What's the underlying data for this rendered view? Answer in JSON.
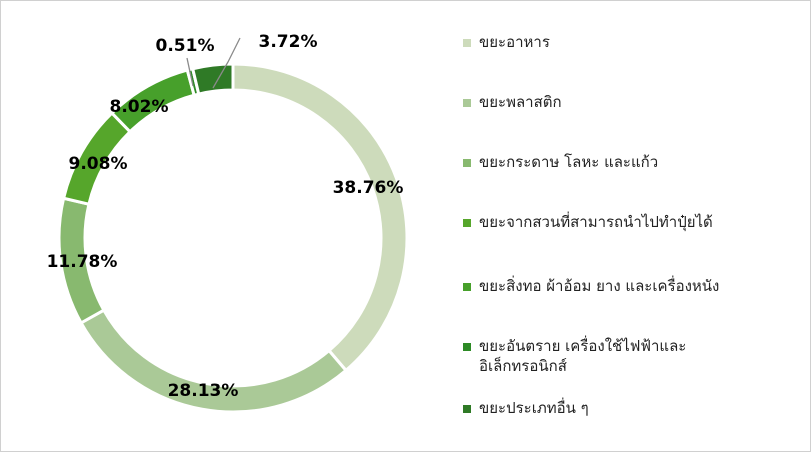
{
  "chart_data": {
    "type": "pie",
    "title": "",
    "categories": [
      "ขยะอาหาร",
      "ขยะพลาสติก",
      "ขยะกระดาษ โลหะ และแก้ว",
      "ขยะจากสวนที่สามารถนำไปทำปุ๋ยได้",
      "ขยะสิ่งทอ ผ้าอ้อม ยาง และเครื่องหนัง",
      "ขยะอันตราย เครื่องใช้ไฟฟ้าและ\nอิเล็กทรอนิกส์",
      "ขยะประเภทอื่น ๆ"
    ],
    "values": [
      38.76,
      28.13,
      11.78,
      9.08,
      8.02,
      0.51,
      3.72
    ],
    "value_labels": [
      "38.76%",
      "28.13%",
      "11.78%",
      "9.08%",
      "8.02%",
      "0.51%",
      "3.72%"
    ],
    "colors": [
      "#cddbbb",
      "#aac997",
      "#88b96f",
      "#56a62b",
      "#47a02b",
      "#2d8a25",
      "#2f7a26"
    ],
    "legend_position": "right",
    "hole": "donut"
  }
}
